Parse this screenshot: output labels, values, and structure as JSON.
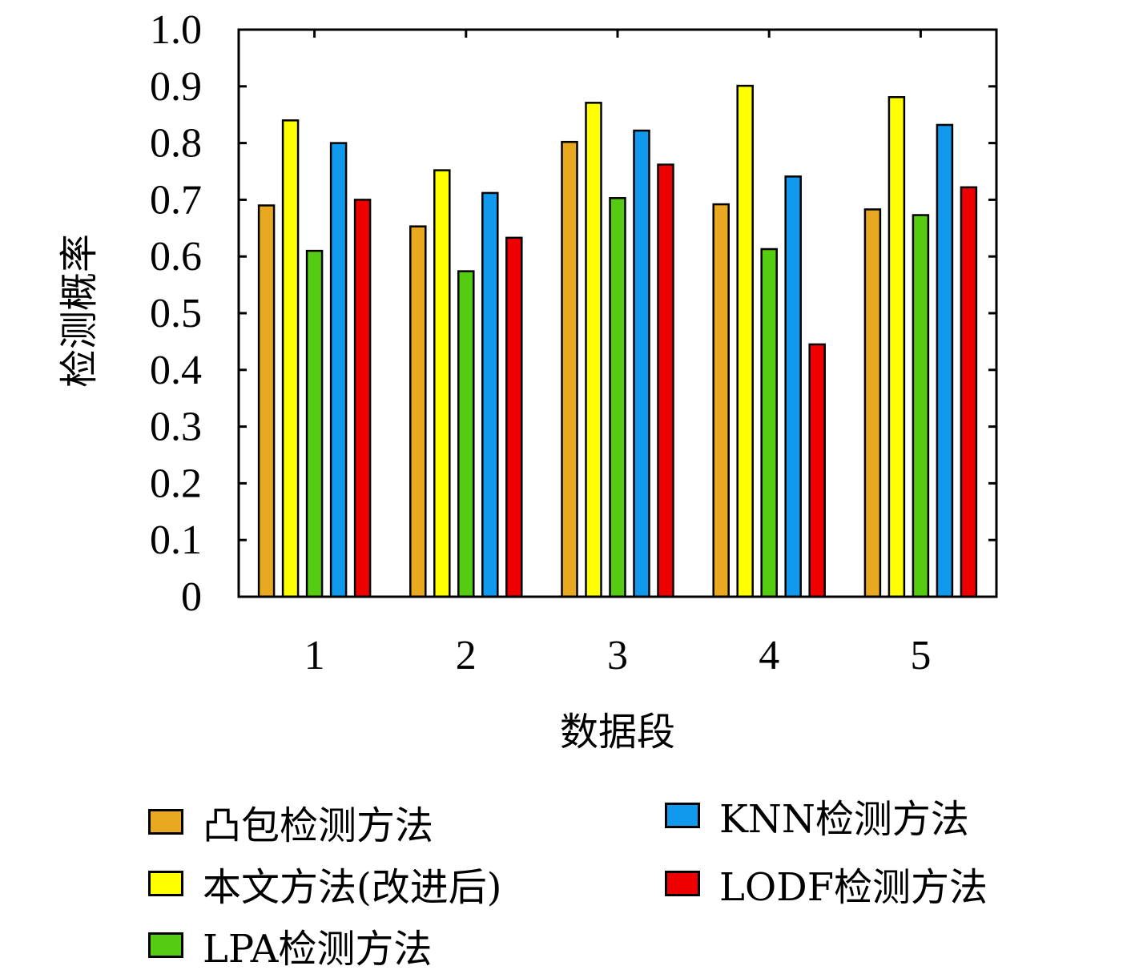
{
  "chart_data": {
    "type": "bar",
    "xlabel": "数据段",
    "ylabel": "检测概率",
    "ylim": [
      0,
      1.0
    ],
    "yticks": [
      "0",
      "0.1",
      "0.2",
      "0.3",
      "0.4",
      "0.5",
      "0.6",
      "0.7",
      "0.8",
      "0.9",
      "1.0"
    ],
    "categories": [
      "1",
      "2",
      "3",
      "4",
      "5"
    ],
    "series": [
      {
        "name": "凸包检测方法",
        "color": "#E8A820",
        "values": [
          0.69,
          0.653,
          0.802,
          0.692,
          0.683
        ]
      },
      {
        "name": "本文方法(改进后)",
        "color": "#FFFF00",
        "values": [
          0.84,
          0.752,
          0.871,
          0.901,
          0.881
        ]
      },
      {
        "name": "LPA检测方法",
        "color": "#55CC11",
        "values": [
          0.61,
          0.574,
          0.703,
          0.613,
          0.673
        ]
      },
      {
        "name": "KNN检测方法",
        "color": "#1199EE",
        "values": [
          0.8,
          0.712,
          0.822,
          0.741,
          0.832
        ]
      },
      {
        "name": "LODF检测方法",
        "color": "#EE0000",
        "values": [
          0.7,
          0.633,
          0.762,
          0.445,
          0.722
        ]
      }
    ],
    "grid": false,
    "legend_position": "bottom"
  },
  "legend": {
    "items": [
      {
        "label": "凸包检测方法",
        "color": "#E8A820"
      },
      {
        "label": "KNN检测方法",
        "color": "#1199EE"
      },
      {
        "label": "本文方法(改进后)",
        "color": "#FFFF00"
      },
      {
        "label": "LODF检测方法",
        "color": "#EE0000"
      },
      {
        "label": "LPA检测方法",
        "color": "#55CC11"
      }
    ]
  }
}
